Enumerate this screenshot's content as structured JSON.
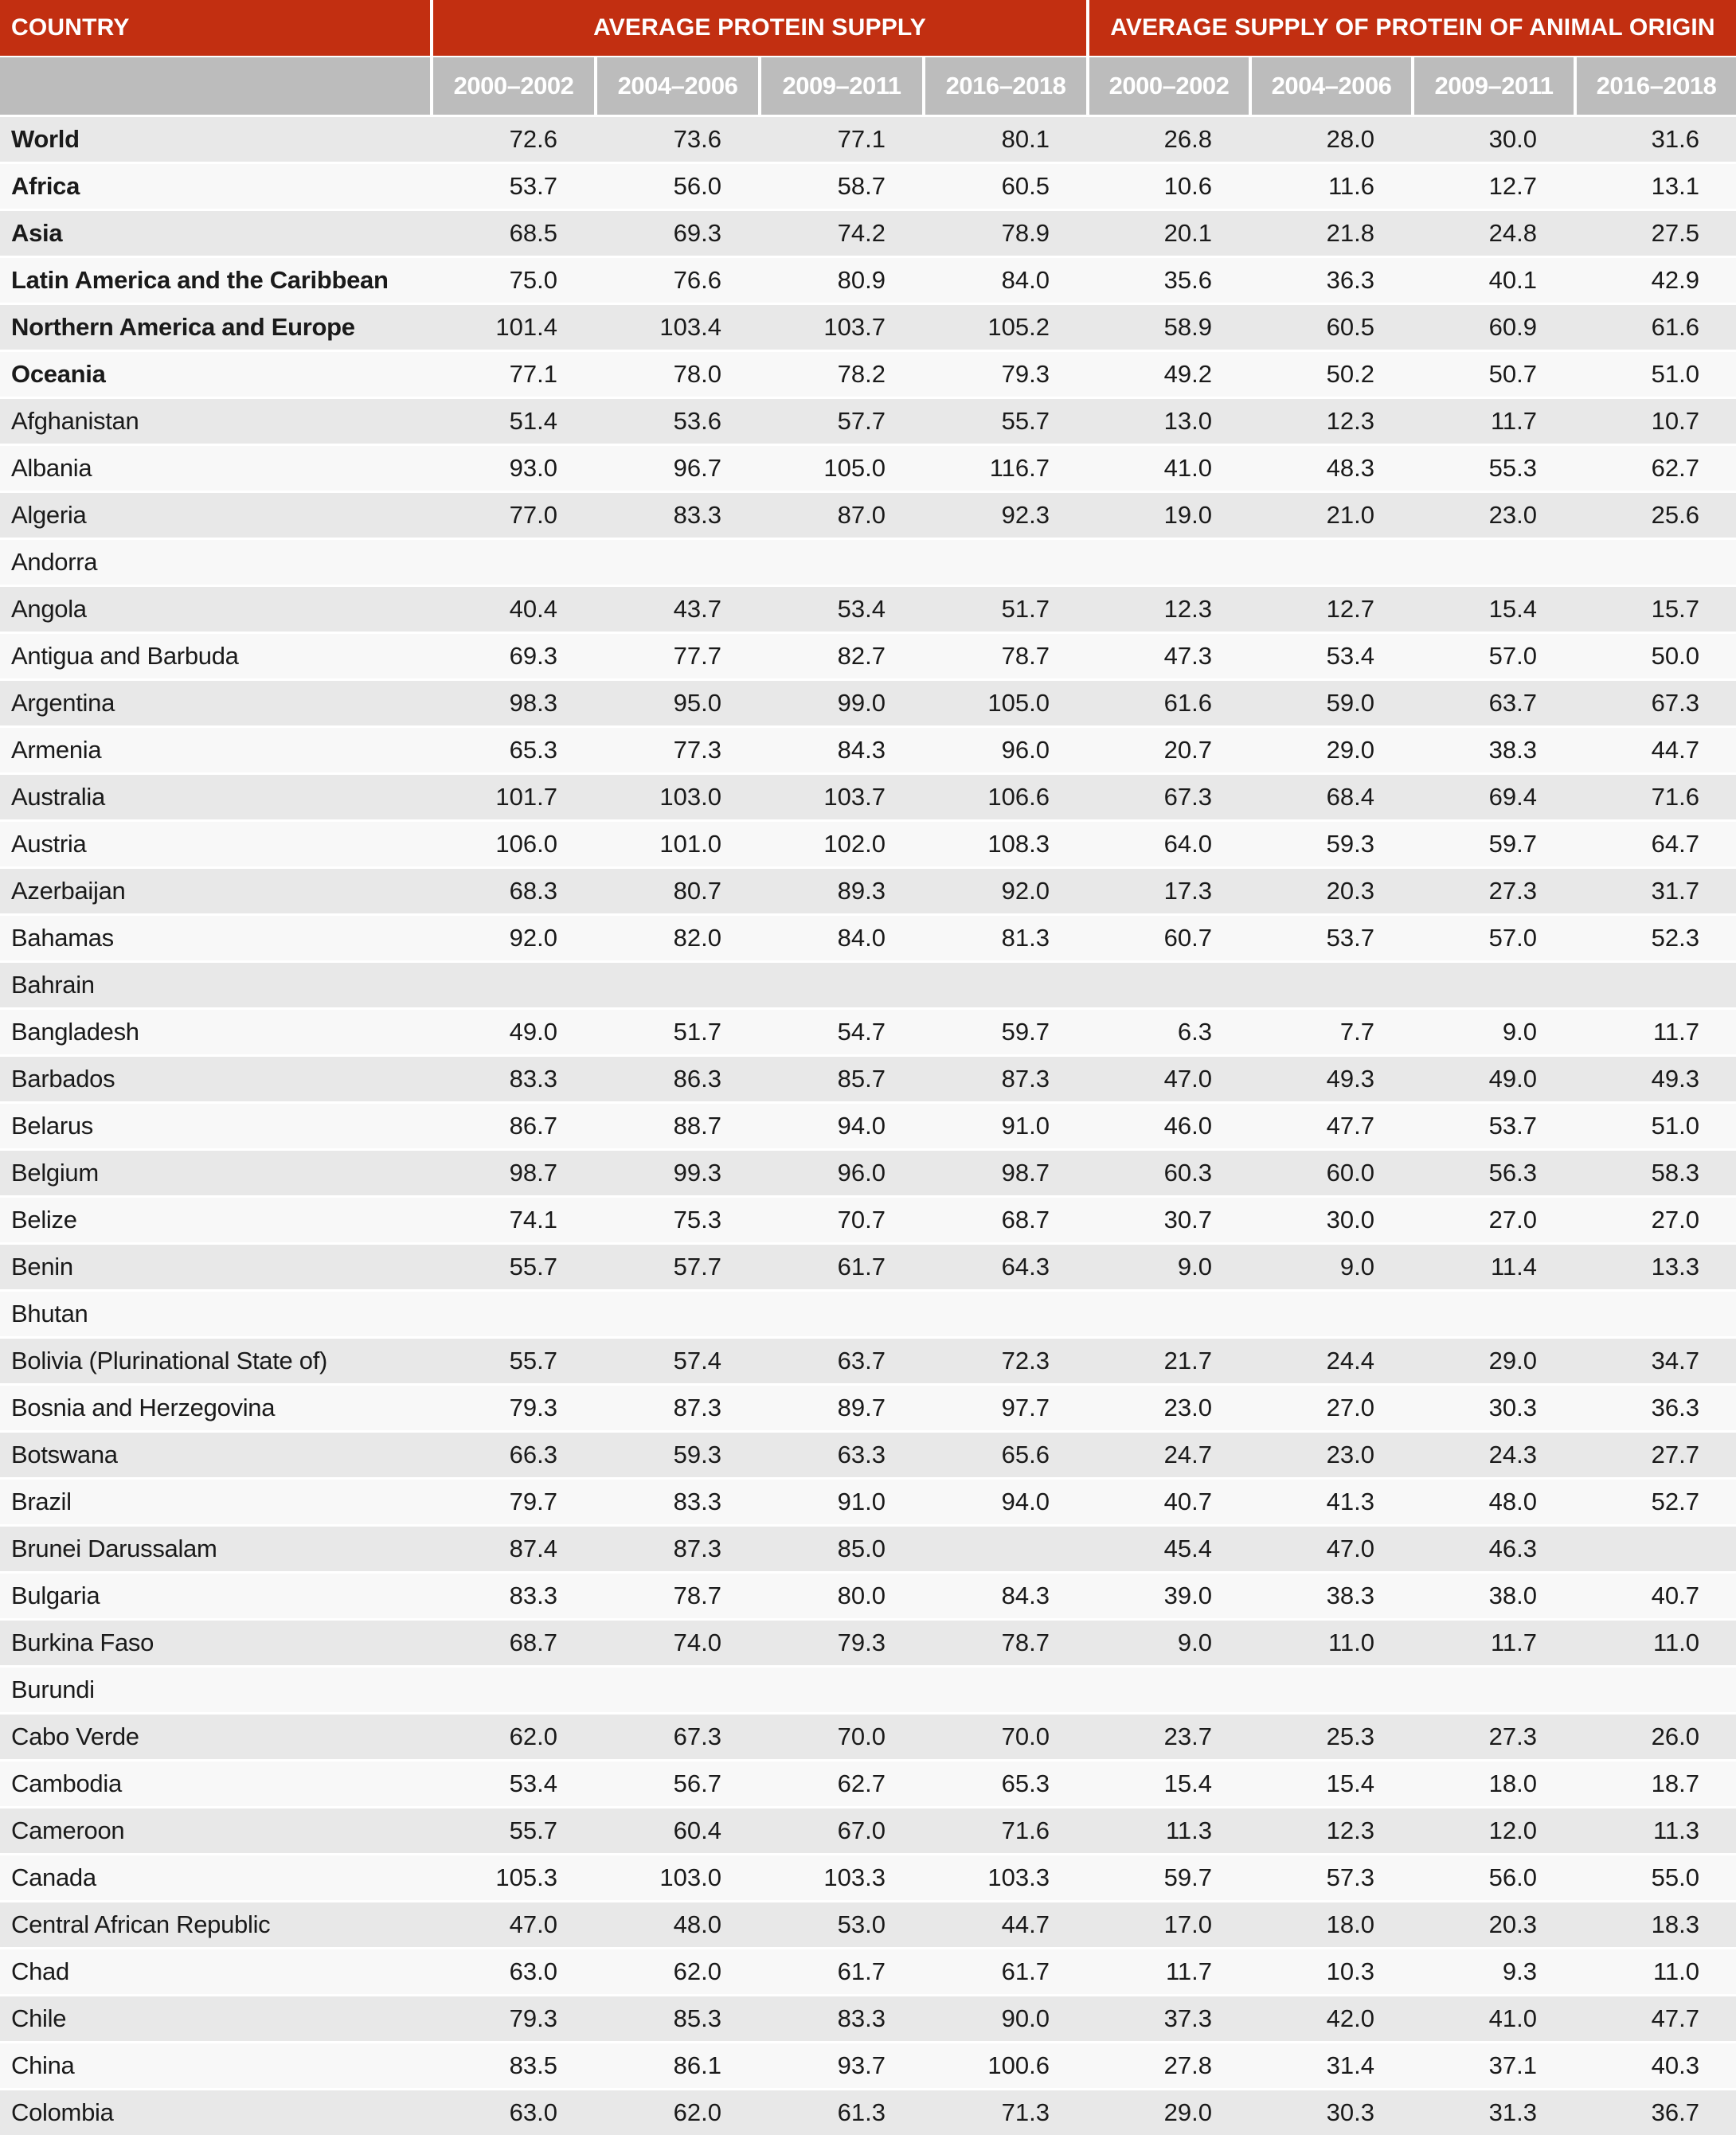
{
  "table": {
    "colors": {
      "header_red": "#C22F11",
      "header_gray": "#BCBCBC",
      "row_odd": "#E8E8E8",
      "row_even": "#F8F8F8",
      "text": "#1A1A1A"
    },
    "columns": {
      "country_header": "COUNTRY",
      "group1_header": "AVERAGE PROTEIN SUPPLY",
      "group2_header": "AVERAGE SUPPLY OF PROTEIN OF ANIMAL ORIGIN",
      "year_headers": [
        "2000–2002",
        "2004–2006",
        "2009–2011",
        "2016–2018"
      ]
    },
    "rows": [
      {
        "country": "World",
        "bold": true,
        "values": [
          "72.6",
          "73.6",
          "77.1",
          "80.1",
          "26.8",
          "28.0",
          "30.0",
          "31.6"
        ]
      },
      {
        "country": "Africa",
        "bold": true,
        "values": [
          "53.7",
          "56.0",
          "58.7",
          "60.5",
          "10.6",
          "11.6",
          "12.7",
          "13.1"
        ]
      },
      {
        "country": "Asia",
        "bold": true,
        "values": [
          "68.5",
          "69.3",
          "74.2",
          "78.9",
          "20.1",
          "21.8",
          "24.8",
          "27.5"
        ]
      },
      {
        "country": "Latin America and the Caribbean",
        "bold": true,
        "values": [
          "75.0",
          "76.6",
          "80.9",
          "84.0",
          "35.6",
          "36.3",
          "40.1",
          "42.9"
        ]
      },
      {
        "country": "Northern America and Europe",
        "bold": true,
        "values": [
          "101.4",
          "103.4",
          "103.7",
          "105.2",
          "58.9",
          "60.5",
          "60.9",
          "61.6"
        ]
      },
      {
        "country": "Oceania",
        "bold": true,
        "values": [
          "77.1",
          "78.0",
          "78.2",
          "79.3",
          "49.2",
          "50.2",
          "50.7",
          "51.0"
        ]
      },
      {
        "country": "Afghanistan",
        "bold": false,
        "values": [
          "51.4",
          "53.6",
          "57.7",
          "55.7",
          "13.0",
          "12.3",
          "11.7",
          "10.7"
        ]
      },
      {
        "country": "Albania",
        "bold": false,
        "values": [
          "93.0",
          "96.7",
          "105.0",
          "116.7",
          "41.0",
          "48.3",
          "55.3",
          "62.7"
        ]
      },
      {
        "country": "Algeria",
        "bold": false,
        "values": [
          "77.0",
          "83.3",
          "87.0",
          "92.3",
          "19.0",
          "21.0",
          "23.0",
          "25.6"
        ]
      },
      {
        "country": "Andorra",
        "bold": false,
        "values": [
          "",
          "",
          "",
          "",
          "",
          "",
          "",
          ""
        ]
      },
      {
        "country": "Angola",
        "bold": false,
        "values": [
          "40.4",
          "43.7",
          "53.4",
          "51.7",
          "12.3",
          "12.7",
          "15.4",
          "15.7"
        ]
      },
      {
        "country": "Antigua and Barbuda",
        "bold": false,
        "values": [
          "69.3",
          "77.7",
          "82.7",
          "78.7",
          "47.3",
          "53.4",
          "57.0",
          "50.0"
        ]
      },
      {
        "country": "Argentina",
        "bold": false,
        "values": [
          "98.3",
          "95.0",
          "99.0",
          "105.0",
          "61.6",
          "59.0",
          "63.7",
          "67.3"
        ]
      },
      {
        "country": "Armenia",
        "bold": false,
        "values": [
          "65.3",
          "77.3",
          "84.3",
          "96.0",
          "20.7",
          "29.0",
          "38.3",
          "44.7"
        ]
      },
      {
        "country": "Australia",
        "bold": false,
        "values": [
          "101.7",
          "103.0",
          "103.7",
          "106.6",
          "67.3",
          "68.4",
          "69.4",
          "71.6"
        ]
      },
      {
        "country": "Austria",
        "bold": false,
        "values": [
          "106.0",
          "101.0",
          "102.0",
          "108.3",
          "64.0",
          "59.3",
          "59.7",
          "64.7"
        ]
      },
      {
        "country": "Azerbaijan",
        "bold": false,
        "values": [
          "68.3",
          "80.7",
          "89.3",
          "92.0",
          "17.3",
          "20.3",
          "27.3",
          "31.7"
        ]
      },
      {
        "country": "Bahamas",
        "bold": false,
        "values": [
          "92.0",
          "82.0",
          "84.0",
          "81.3",
          "60.7",
          "53.7",
          "57.0",
          "52.3"
        ]
      },
      {
        "country": "Bahrain",
        "bold": false,
        "values": [
          "",
          "",
          "",
          "",
          "",
          "",
          "",
          ""
        ]
      },
      {
        "country": "Bangladesh",
        "bold": false,
        "values": [
          "49.0",
          "51.7",
          "54.7",
          "59.7",
          "6.3",
          "7.7",
          "9.0",
          "11.7"
        ]
      },
      {
        "country": "Barbados",
        "bold": false,
        "values": [
          "83.3",
          "86.3",
          "85.7",
          "87.3",
          "47.0",
          "49.3",
          "49.0",
          "49.3"
        ]
      },
      {
        "country": "Belarus",
        "bold": false,
        "values": [
          "86.7",
          "88.7",
          "94.0",
          "91.0",
          "46.0",
          "47.7",
          "53.7",
          "51.0"
        ]
      },
      {
        "country": "Belgium",
        "bold": false,
        "values": [
          "98.7",
          "99.3",
          "96.0",
          "98.7",
          "60.3",
          "60.0",
          "56.3",
          "58.3"
        ]
      },
      {
        "country": "Belize",
        "bold": false,
        "values": [
          "74.1",
          "75.3",
          "70.7",
          "68.7",
          "30.7",
          "30.0",
          "27.0",
          "27.0"
        ]
      },
      {
        "country": "Benin",
        "bold": false,
        "values": [
          "55.7",
          "57.7",
          "61.7",
          "64.3",
          "9.0",
          "9.0",
          "11.4",
          "13.3"
        ]
      },
      {
        "country": "Bhutan",
        "bold": false,
        "values": [
          "",
          "",
          "",
          "",
          "",
          "",
          "",
          ""
        ]
      },
      {
        "country": "Bolivia (Plurinational State of)",
        "bold": false,
        "values": [
          "55.7",
          "57.4",
          "63.7",
          "72.3",
          "21.7",
          "24.4",
          "29.0",
          "34.7"
        ]
      },
      {
        "country": "Bosnia and Herzegovina",
        "bold": false,
        "values": [
          "79.3",
          "87.3",
          "89.7",
          "97.7",
          "23.0",
          "27.0",
          "30.3",
          "36.3"
        ]
      },
      {
        "country": "Botswana",
        "bold": false,
        "values": [
          "66.3",
          "59.3",
          "63.3",
          "65.6",
          "24.7",
          "23.0",
          "24.3",
          "27.7"
        ]
      },
      {
        "country": "Brazil",
        "bold": false,
        "values": [
          "79.7",
          "83.3",
          "91.0",
          "94.0",
          "40.7",
          "41.3",
          "48.0",
          "52.7"
        ]
      },
      {
        "country": "Brunei Darussalam",
        "bold": false,
        "values": [
          "87.4",
          "87.3",
          "85.0",
          "",
          "45.4",
          "47.0",
          "46.3",
          ""
        ]
      },
      {
        "country": "Bulgaria",
        "bold": false,
        "values": [
          "83.3",
          "78.7",
          "80.0",
          "84.3",
          "39.0",
          "38.3",
          "38.0",
          "40.7"
        ]
      },
      {
        "country": "Burkina Faso",
        "bold": false,
        "values": [
          "68.7",
          "74.0",
          "79.3",
          "78.7",
          "9.0",
          "11.0",
          "11.7",
          "11.0"
        ]
      },
      {
        "country": "Burundi",
        "bold": false,
        "values": [
          "",
          "",
          "",
          "",
          "",
          "",
          "",
          ""
        ]
      },
      {
        "country": "Cabo Verde",
        "bold": false,
        "values": [
          "62.0",
          "67.3",
          "70.0",
          "70.0",
          "23.7",
          "25.3",
          "27.3",
          "26.0"
        ]
      },
      {
        "country": "Cambodia",
        "bold": false,
        "values": [
          "53.4",
          "56.7",
          "62.7",
          "65.3",
          "15.4",
          "15.4",
          "18.0",
          "18.7"
        ]
      },
      {
        "country": "Cameroon",
        "bold": false,
        "values": [
          "55.7",
          "60.4",
          "67.0",
          "71.6",
          "11.3",
          "12.3",
          "12.0",
          "11.3"
        ]
      },
      {
        "country": "Canada",
        "bold": false,
        "values": [
          "105.3",
          "103.0",
          "103.3",
          "103.3",
          "59.7",
          "57.3",
          "56.0",
          "55.0"
        ]
      },
      {
        "country": "Central African Republic",
        "bold": false,
        "values": [
          "47.0",
          "48.0",
          "53.0",
          "44.7",
          "17.0",
          "18.0",
          "20.3",
          "18.3"
        ]
      },
      {
        "country": "Chad",
        "bold": false,
        "values": [
          "63.0",
          "62.0",
          "61.7",
          "61.7",
          "11.7",
          "10.3",
          "9.3",
          "11.0"
        ]
      },
      {
        "country": "Chile",
        "bold": false,
        "values": [
          "79.3",
          "85.3",
          "83.3",
          "90.0",
          "37.3",
          "42.0",
          "41.0",
          "47.7"
        ]
      },
      {
        "country": "China",
        "bold": false,
        "values": [
          "83.5",
          "86.1",
          "93.7",
          "100.6",
          "27.8",
          "31.4",
          "37.1",
          "40.3"
        ]
      },
      {
        "country": "Colombia",
        "bold": false,
        "values": [
          "63.0",
          "62.0",
          "61.3",
          "71.3",
          "29.0",
          "30.3",
          "31.3",
          "36.7"
        ]
      }
    ]
  }
}
